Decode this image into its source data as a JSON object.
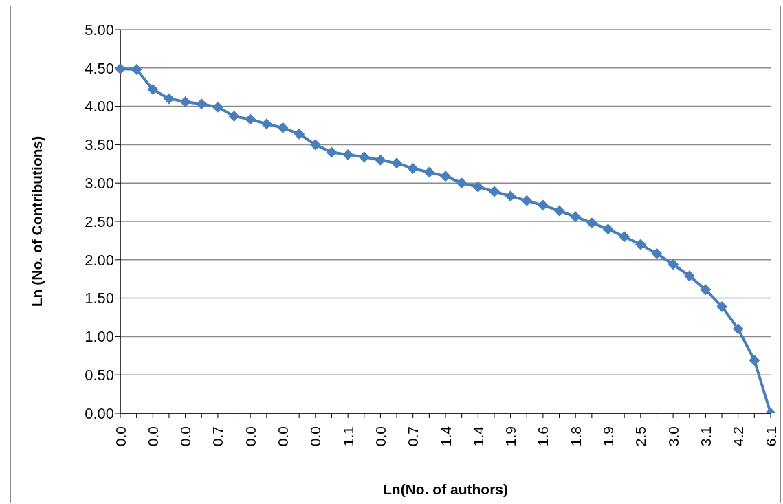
{
  "chart_data": {
    "type": "line",
    "xlabel": "Ln(No. of authors)",
    "ylabel": "Ln (No. of Contributions)",
    "categories": [
      "0.0",
      null,
      "0.0",
      null,
      "0.0",
      null,
      "0.7",
      null,
      "0.0",
      null,
      "0.0",
      null,
      "0.0",
      null,
      "1.1",
      null,
      "0.0",
      null,
      "0.7",
      null,
      "1.4",
      null,
      "1.4",
      null,
      "1.9",
      null,
      "1.6",
      null,
      "1.8",
      null,
      "1.9",
      null,
      "2.5",
      null,
      "3.0",
      null,
      "3.1",
      null,
      "4.2",
      null,
      "6.1"
    ],
    "series": [
      {
        "color": "#4a7ebb",
        "values": [
          4.49,
          4.48,
          4.22,
          4.1,
          4.06,
          4.03,
          3.99,
          3.87,
          3.83,
          3.77,
          3.72,
          3.64,
          3.5,
          3.4,
          3.37,
          3.34,
          3.3,
          3.26,
          3.19,
          3.14,
          3.09,
          3.0,
          2.95,
          2.89,
          2.83,
          2.77,
          2.71,
          2.64,
          2.56,
          2.48,
          2.4,
          2.3,
          2.2,
          2.08,
          1.94,
          1.79,
          1.61,
          1.39,
          1.1,
          0.69,
          0.0
        ]
      }
    ],
    "ylim": [
      0,
      5
    ],
    "yticks": [
      {
        "value": 0,
        "label": "0.00"
      },
      {
        "value": 0.5,
        "label": "0.50"
      },
      {
        "value": 1,
        "label": "1.00"
      },
      {
        "value": 1.5,
        "label": "1.50"
      },
      {
        "value": 2,
        "label": "2.00"
      },
      {
        "value": 2.5,
        "label": "2.50"
      },
      {
        "value": 3,
        "label": "3.00"
      },
      {
        "value": 3.5,
        "label": "3.50"
      },
      {
        "value": 4,
        "label": "4.00"
      },
      {
        "value": 4.5,
        "label": "4.50"
      },
      {
        "value": 5,
        "label": "5.00"
      }
    ],
    "grid": "y",
    "marker": "diamond",
    "line_style": "solid",
    "legend": false
  }
}
